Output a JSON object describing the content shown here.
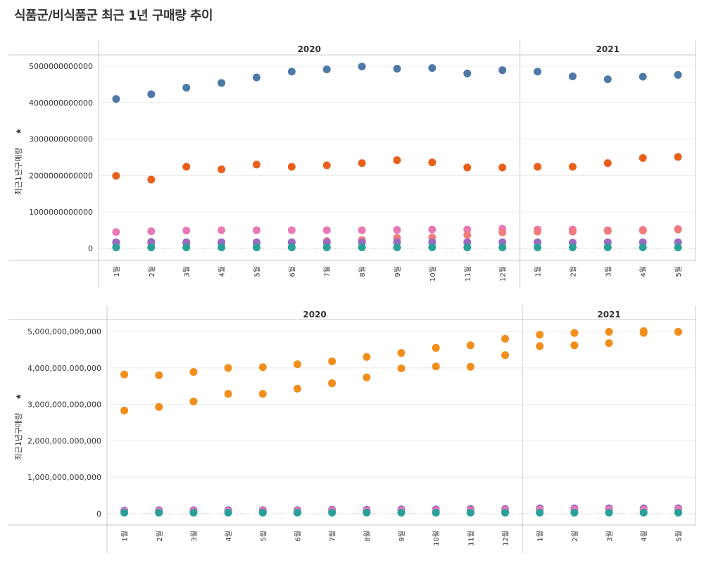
{
  "title": "식품군/비식품군 최근 1년 구매량 추이",
  "colors": {
    "blue": "#4e79a7",
    "orange_red": "#e8601c",
    "pink": "#e879b5",
    "salmon": "#f07c7c",
    "purple": "#9b69c2",
    "teal": "#2aa198",
    "orange": "#f28e1c"
  },
  "chart_data": [
    {
      "type": "scatter",
      "title": "",
      "xlabel": "",
      "ylabel": "최근1년구매량",
      "ylim": [
        0,
        5000000000000
      ],
      "yticks": [
        "0",
        "1000000000000",
        "2000000000000",
        "3000000000000",
        "4000000000000",
        "5000000000000"
      ],
      "years": [
        "2020",
        "2021"
      ],
      "x": [
        "2020-1",
        "2020-2",
        "2020-3",
        "2020-4",
        "2020-5",
        "2020-6",
        "2020-7",
        "2020-8",
        "2020-9",
        "2020-10",
        "2020-11",
        "2020-12",
        "2021-1",
        "2021-2",
        "2021-3",
        "2021-4",
        "2021-5"
      ],
      "month_labels": [
        "1월",
        "2월",
        "3월",
        "4월",
        "5월",
        "6월",
        "7월",
        "8월",
        "9월",
        "10월",
        "11월",
        "12월",
        "1월",
        "2월",
        "3월",
        "4월",
        "5월"
      ],
      "series": [
        {
          "color": "blue",
          "values": [
            4100000000000,
            4230000000000,
            4410000000000,
            4540000000000,
            4690000000000,
            4850000000000,
            4910000000000,
            4990000000000,
            4930000000000,
            4950000000000,
            4800000000000,
            4890000000000,
            4850000000000,
            4720000000000,
            4640000000000,
            4710000000000,
            4760000000000
          ]
        },
        {
          "color": "orange_red",
          "values": [
            1990000000000,
            1890000000000,
            2240000000000,
            2170000000000,
            2300000000000,
            2240000000000,
            2280000000000,
            2340000000000,
            2420000000000,
            2360000000000,
            2220000000000,
            2220000000000,
            2240000000000,
            2240000000000,
            2340000000000,
            2480000000000,
            2510000000000
          ]
        },
        {
          "color": "pink",
          "values": [
            450000000000,
            470000000000,
            490000000000,
            500000000000,
            500000000000,
            500000000000,
            500000000000,
            500000000000,
            510000000000,
            520000000000,
            520000000000,
            540000000000,
            520000000000,
            520000000000,
            500000000000,
            510000000000,
            530000000000
          ]
        },
        {
          "color": "salmon",
          "values": [
            150000000000,
            150000000000,
            140000000000,
            150000000000,
            150000000000,
            160000000000,
            200000000000,
            230000000000,
            290000000000,
            300000000000,
            370000000000,
            440000000000,
            460000000000,
            460000000000,
            480000000000,
            490000000000,
            520000000000
          ]
        },
        {
          "color": "purple",
          "values": [
            170000000000,
            180000000000,
            170000000000,
            170000000000,
            170000000000,
            170000000000,
            160000000000,
            170000000000,
            170000000000,
            170000000000,
            170000000000,
            170000000000,
            170000000000,
            160000000000,
            170000000000,
            170000000000,
            170000000000
          ]
        },
        {
          "color": "teal",
          "values": [
            30000000000,
            30000000000,
            30000000000,
            30000000000,
            30000000000,
            30000000000,
            30000000000,
            30000000000,
            30000000000,
            30000000000,
            30000000000,
            30000000000,
            30000000000,
            30000000000,
            30000000000,
            30000000000,
            30000000000
          ]
        }
      ]
    },
    {
      "type": "scatter",
      "title": "",
      "xlabel": "",
      "ylabel": "최근1년구매량",
      "ylim": [
        0,
        5000000000000
      ],
      "yticks": [
        "0",
        "1,000,000,000,000",
        "2,000,000,000,000",
        "3,000,000,000,000",
        "4,000,000,000,000",
        "5,000,000,000,000"
      ],
      "years": [
        "2020",
        "2021"
      ],
      "x": [
        "2020-1",
        "2020-2",
        "2020-3",
        "2020-4",
        "2020-5",
        "2020-6",
        "2020-7",
        "2020-8",
        "2020-9",
        "2020-10",
        "2020-11",
        "2020-12",
        "2021-1",
        "2021-2",
        "2021-3",
        "2021-4",
        "2021-5"
      ],
      "month_labels": [
        "1월",
        "2월",
        "3월",
        "4월",
        "5월",
        "6월",
        "7월",
        "8월",
        "9월",
        "10월",
        "11월",
        "12월",
        "1월",
        "2월",
        "3월",
        "4월",
        "5월"
      ],
      "series": [
        {
          "color": "orange",
          "values": [
            3820000000000,
            3800000000000,
            3890000000000,
            4000000000000,
            4020000000000,
            4100000000000,
            4180000000000,
            4300000000000,
            4410000000000,
            4550000000000,
            4620000000000,
            4800000000000,
            4910000000000,
            4960000000000,
            4990000000000,
            5010000000000,
            4990000000000
          ]
        },
        {
          "color": "orange",
          "values": [
            2830000000000,
            2930000000000,
            3080000000000,
            3290000000000,
            3290000000000,
            3430000000000,
            3580000000000,
            3740000000000,
            3990000000000,
            4040000000000,
            4030000000000,
            4350000000000,
            4600000000000,
            4620000000000,
            4680000000000,
            4960000000000,
            4990000000000
          ]
        },
        {
          "color": "purple",
          "values": [
            90000000000,
            100000000000,
            100000000000,
            100000000000,
            100000000000,
            100000000000,
            110000000000,
            110000000000,
            120000000000,
            120000000000,
            130000000000,
            130000000000,
            150000000000,
            150000000000,
            150000000000,
            150000000000,
            150000000000
          ]
        },
        {
          "color": "pink",
          "values": [
            60000000000,
            70000000000,
            70000000000,
            70000000000,
            70000000000,
            70000000000,
            80000000000,
            80000000000,
            80000000000,
            90000000000,
            90000000000,
            100000000000,
            110000000000,
            110000000000,
            110000000000,
            110000000000,
            110000000000
          ]
        },
        {
          "color": "teal",
          "values": [
            30000000000,
            30000000000,
            30000000000,
            30000000000,
            30000000000,
            30000000000,
            30000000000,
            30000000000,
            30000000000,
            30000000000,
            30000000000,
            30000000000,
            30000000000,
            30000000000,
            30000000000,
            30000000000,
            30000000000
          ]
        }
      ]
    }
  ]
}
